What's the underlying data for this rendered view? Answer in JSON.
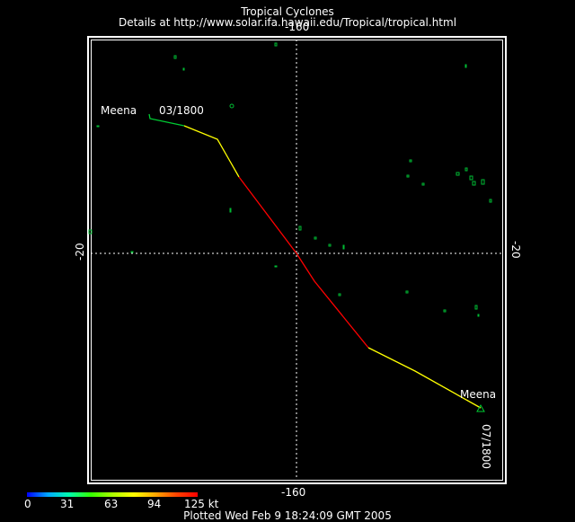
{
  "header": {
    "title": "Tropical Cyclones",
    "subtitle": "Details at http://www.solar.ifa.hawaii.edu/Tropical/tropical.html"
  },
  "axes": {
    "lon_top": "-160",
    "lon_bottom": "-160",
    "lat_left": "-20",
    "lat_right": "-20"
  },
  "storm": {
    "name": "Meena",
    "start_label": "Meena",
    "start_time": "03/1800",
    "end_label": "Meena",
    "end_time": "07/1800"
  },
  "legend": {
    "ticks": [
      "0",
      "31",
      "63",
      "94",
      "125 kt"
    ]
  },
  "footer": "Plotted Wed Feb 9 18:24:09 GMT 2005",
  "colors": {
    "track_low": "#00cc33",
    "track_mid": "#ffff00",
    "track_high": "#ff0000",
    "land": "#00bb33",
    "grid": "#ffffff"
  }
}
